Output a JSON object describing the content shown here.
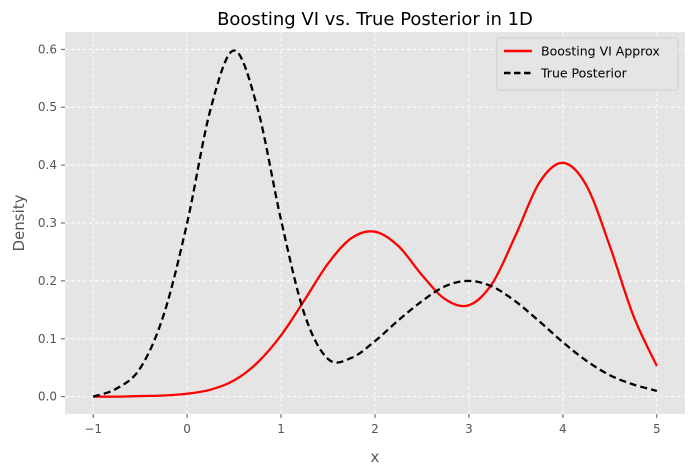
{
  "chart_data": {
    "type": "line",
    "title": "Boosting VI vs. True Posterior in 1D",
    "xlabel": "x",
    "ylabel": "Density",
    "xlim": [
      -1.3,
      5.3
    ],
    "ylim": [
      -0.03,
      0.63
    ],
    "x_ticks": [
      -1,
      0,
      1,
      2,
      3,
      4,
      5
    ],
    "y_ticks": [
      0.0,
      0.1,
      0.2,
      0.3,
      0.4,
      0.5,
      0.6
    ],
    "y_tick_labels": [
      "0.0",
      "0.1",
      "0.2",
      "0.3",
      "0.4",
      "0.5",
      "0.6"
    ],
    "grid": true,
    "background": "#e5e5e5",
    "legend_position": "top-right",
    "x": [
      -1.0,
      -0.75,
      -0.5,
      -0.25,
      0.0,
      0.25,
      0.5,
      0.75,
      1.0,
      1.25,
      1.5,
      1.75,
      2.0,
      2.25,
      2.5,
      2.75,
      3.0,
      3.25,
      3.5,
      3.75,
      4.0,
      4.25,
      4.5,
      4.75,
      5.0
    ],
    "series": [
      {
        "name": "Boosting VI Approx",
        "color": "#ff0000",
        "style": "solid",
        "values": [
          0.0,
          0.0,
          0.001,
          0.002,
          0.005,
          0.012,
          0.028,
          0.059,
          0.106,
          0.167,
          0.23,
          0.274,
          0.285,
          0.26,
          0.21,
          0.168,
          0.158,
          0.196,
          0.28,
          0.37,
          0.404,
          0.365,
          0.26,
          0.14,
          0.053
        ]
      },
      {
        "name": "True Posterior",
        "color": "#000000",
        "style": "dashed",
        "values": [
          0.0,
          0.014,
          0.049,
          0.141,
          0.3,
          0.497,
          0.598,
          0.498,
          0.305,
          0.142,
          0.065,
          0.067,
          0.096,
          0.132,
          0.165,
          0.191,
          0.2,
          0.19,
          0.164,
          0.13,
          0.094,
          0.062,
          0.037,
          0.021,
          0.01
        ]
      }
    ]
  }
}
